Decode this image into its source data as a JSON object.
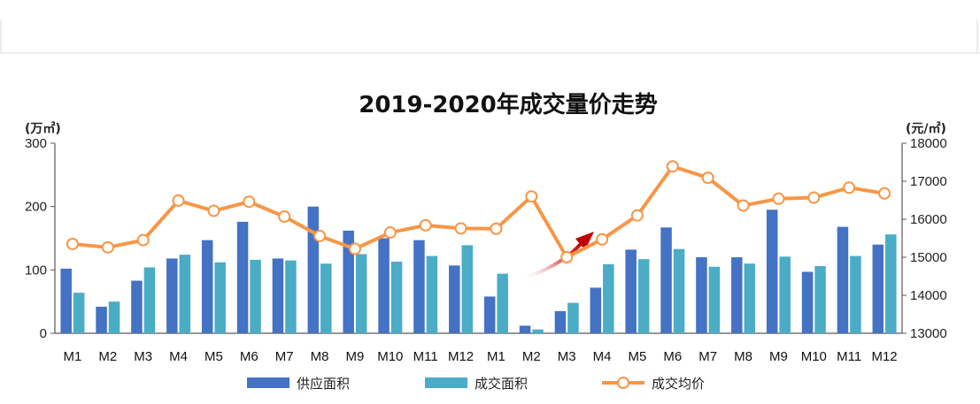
{
  "chart_data": {
    "type": "bar",
    "title": "2019-2020年成交量价走势",
    "ylabel_left": "(万㎡)",
    "ylabel_right": "(元/㎡)",
    "ylim_left": [
      0,
      300
    ],
    "ylim_right": [
      13000,
      18000
    ],
    "yticks_left": [
      "0",
      "100",
      "200",
      "300"
    ],
    "yticks_right": [
      "13000",
      "14000",
      "15000",
      "16000",
      "17000",
      "18000"
    ],
    "categories": [
      "M1",
      "M2",
      "M3",
      "M4",
      "M5",
      "M6",
      "M7",
      "M8",
      "M9",
      "M10",
      "M11",
      "M12",
      "M1",
      "M2",
      "M3",
      "M4",
      "M5",
      "M6",
      "M7",
      "M8",
      "M9",
      "M10",
      "M11",
      "M12"
    ],
    "series": [
      {
        "name": "供应面积",
        "type": "bar",
        "axis": "left",
        "color": "#4472c4",
        "values": [
          102,
          42,
          83,
          118,
          147,
          176,
          118,
          200,
          162,
          150,
          147,
          107,
          58,
          12,
          35,
          72,
          132,
          167,
          120,
          120,
          195,
          97,
          168,
          140
        ]
      },
      {
        "name": "成交面积",
        "type": "bar",
        "axis": "left",
        "color": "#4bacc6",
        "values": [
          64,
          50,
          104,
          124,
          112,
          116,
          115,
          110,
          125,
          113,
          122,
          139,
          94,
          6,
          48,
          109,
          117,
          133,
          105,
          110,
          121,
          106,
          122,
          156
        ]
      },
      {
        "name": "成交均价",
        "type": "line",
        "axis": "right",
        "color": "#f79646",
        "values": [
          15350,
          15260,
          15450,
          16490,
          16220,
          16460,
          16070,
          15560,
          15220,
          15650,
          15840,
          15760,
          15750,
          16600,
          15000,
          15470,
          16100,
          17390,
          17090,
          16360,
          16540,
          16570,
          16830,
          16680
        ]
      }
    ],
    "grid": false,
    "legend": "bottom"
  }
}
